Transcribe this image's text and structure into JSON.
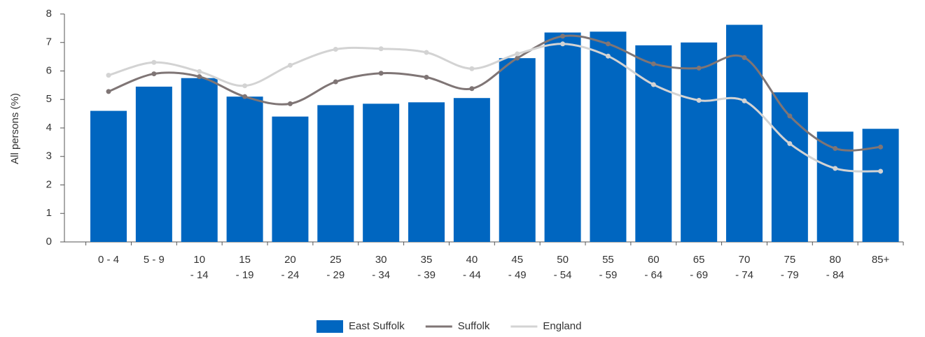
{
  "chart_data": {
    "type": "bar",
    "y_label": "All persons (%)",
    "categories": [
      [
        "0 - 4"
      ],
      [
        "5 - 9"
      ],
      [
        "10",
        "- 14"
      ],
      [
        "15",
        "- 19"
      ],
      [
        "20",
        "- 24"
      ],
      [
        "25",
        "- 29"
      ],
      [
        "30",
        "- 34"
      ],
      [
        "35",
        "- 39"
      ],
      [
        "40",
        "- 44"
      ],
      [
        "45",
        "- 49"
      ],
      [
        "50",
        "- 54"
      ],
      [
        "55",
        "- 59"
      ],
      [
        "60",
        "- 64"
      ],
      [
        "65",
        "- 69"
      ],
      [
        "70",
        "- 74"
      ],
      [
        "75",
        "- 79"
      ],
      [
        "80",
        "- 84"
      ],
      [
        "85+"
      ]
    ],
    "series": [
      {
        "name": "East Suffolk",
        "type": "bar",
        "color": "#0066c0",
        "values": [
          4.6,
          5.45,
          5.75,
          5.1,
          4.4,
          4.8,
          4.85,
          4.9,
          5.05,
          6.45,
          7.35,
          7.38,
          6.9,
          7.0,
          7.62,
          5.25,
          3.87,
          3.97
        ]
      },
      {
        "name": "Suffolk",
        "type": "line",
        "color": "#7f7575",
        "values": [
          5.28,
          5.9,
          5.8,
          5.1,
          4.85,
          5.62,
          5.92,
          5.78,
          5.38,
          6.45,
          7.22,
          6.95,
          6.25,
          6.1,
          6.47,
          4.42,
          3.28,
          3.33
        ]
      },
      {
        "name": "England",
        "type": "line",
        "color": "#d3d3d3",
        "values": [
          5.85,
          6.3,
          5.98,
          5.48,
          6.2,
          6.76,
          6.78,
          6.65,
          6.08,
          6.6,
          6.95,
          6.52,
          5.52,
          4.97,
          4.95,
          3.45,
          2.58,
          2.48
        ]
      }
    ],
    "ylim": [
      0,
      8
    ],
    "yticks": [
      0,
      1,
      2,
      3,
      4,
      5,
      6,
      7,
      8
    ],
    "grid": false,
    "legend": "bottom"
  }
}
